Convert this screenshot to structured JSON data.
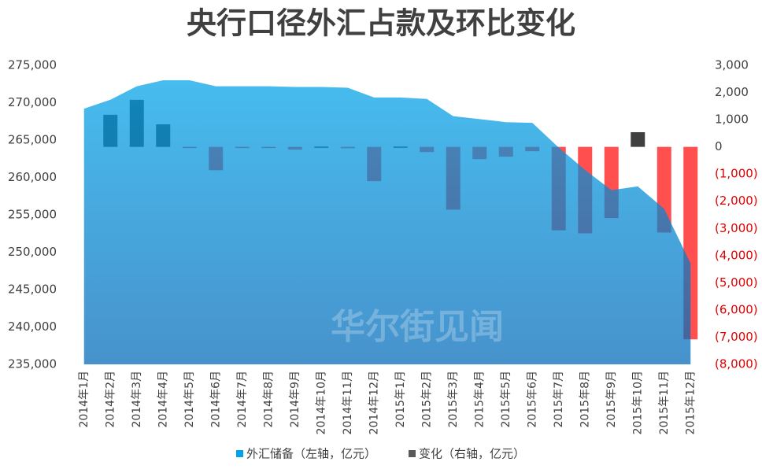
{
  "chart_data": {
    "type": "area_bar",
    "title": "央行口径外汇占款及环比变化",
    "watermark": "华尔街见闻",
    "categories": [
      "2014年1月",
      "2014年2月",
      "2014年3月",
      "2014年4月",
      "2014年5月",
      "2014年6月",
      "2014年7月",
      "2014年8月",
      "2014年9月",
      "2014年10月",
      "2014年11月",
      "2014年12月",
      "2015年1月",
      "2015年2月",
      "2015年3月",
      "2015年4月",
      "2015年5月",
      "2015年6月",
      "2015年7月",
      "2015年8月",
      "2015年9月",
      "2015年10月",
      "2015年11月",
      "2015年12月"
    ],
    "series": [
      {
        "name": "外汇储备（左轴，亿元）",
        "type": "area",
        "color": "#00a2e8",
        "color_bottom": "#0068b8",
        "values": [
          269200,
          270400,
          272200,
          273000,
          273000,
          272200,
          272200,
          272200,
          272100,
          272100,
          272000,
          270700,
          270700,
          270500,
          268200,
          267800,
          267400,
          267300,
          264000,
          261000,
          258300,
          258800,
          255800,
          248500
        ]
      },
      {
        "name": "变化（右轴，亿元）",
        "type": "bar",
        "axis": "y2",
        "color": "#595959",
        "positive_color": "#404040",
        "negative_color": "#ff4f4f",
        "values": [
          null,
          1180,
          1730,
          830,
          -20,
          -860,
          -10,
          -10,
          -100,
          10,
          -50,
          -1260,
          10,
          -190,
          -2310,
          -450,
          -360,
          -160,
          -3070,
          -3180,
          -2620,
          540,
          -3150,
          -7080
        ]
      }
    ],
    "ylim": [
      235000,
      275000
    ],
    "yticks": [
      {
        "value": 235000,
        "label": "235,000"
      },
      {
        "value": 240000,
        "label": "240,000"
      },
      {
        "value": 245000,
        "label": "245,000"
      },
      {
        "value": 250000,
        "label": "250,000"
      },
      {
        "value": 255000,
        "label": "255,000"
      },
      {
        "value": 260000,
        "label": "260,000"
      },
      {
        "value": 265000,
        "label": "265,000"
      },
      {
        "value": 270000,
        "label": "270,000"
      },
      {
        "value": 275000,
        "label": "275,000"
      }
    ],
    "y2lim": [
      -8000,
      3000
    ],
    "y2ticks": [
      {
        "value": -8000,
        "label": "(8,000)"
      },
      {
        "value": -7000,
        "label": "(7,000)"
      },
      {
        "value": -6000,
        "label": "(6,000)"
      },
      {
        "value": -5000,
        "label": "(5,000)"
      },
      {
        "value": -4000,
        "label": "(4,000)"
      },
      {
        "value": -3000,
        "label": "(3,000)"
      },
      {
        "value": -2000,
        "label": "(2,000)"
      },
      {
        "value": -1000,
        "label": "(1,000)"
      },
      0,
      {
        "value": 1000,
        "label": "1,000"
      },
      {
        "value": 2000,
        "label": "2,000"
      },
      {
        "value": 3000,
        "label": "3,000"
      }
    ],
    "negative_label_color": "#e00000",
    "legend": "bottom"
  }
}
